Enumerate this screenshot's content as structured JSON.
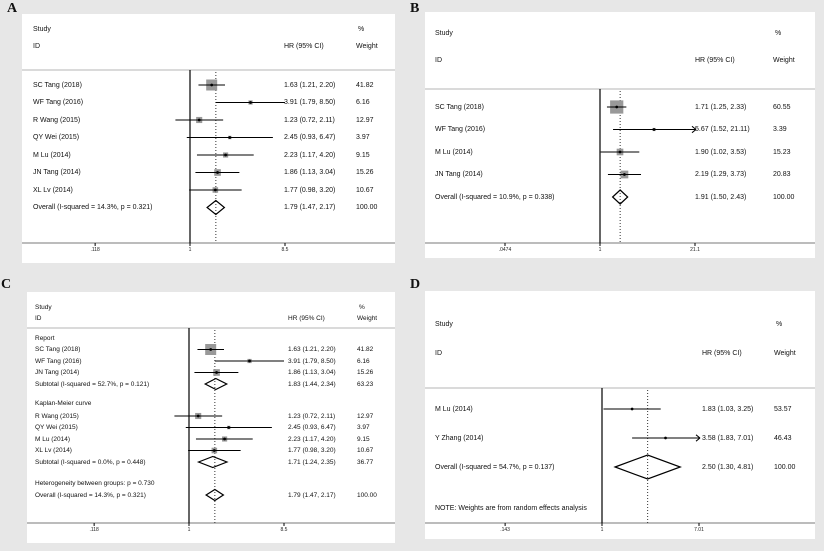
{
  "figure": {
    "panel_letters": [
      "A",
      "B",
      "C",
      "D"
    ],
    "background": "#e7e7e7",
    "colors": {
      "marker_square": "#999999",
      "line": "#000000",
      "separator": "#b5b5b5",
      "axis": "#7a7a7a",
      "text": "#111111"
    }
  },
  "chart_data": [
    {
      "type": "scatter",
      "subtype": "forest-plot",
      "panel": "A",
      "columns": {
        "study": "Study",
        "id": "ID",
        "hr": "HR (95% CI)",
        "pct": "%",
        "weight": "Weight"
      },
      "axis": {
        "scale": "log",
        "ticks": [
          ".118",
          "1",
          "8.5"
        ],
        "tick_values": [
          0.118,
          1,
          8.5
        ],
        "null_value": 1,
        "overall_value": 1.79
      },
      "rows": [
        {
          "kind": "study",
          "label": "SC Tang (2018)",
          "hr": 1.63,
          "lo": 1.21,
          "hi": 2.2,
          "hr_text": "1.63 (1.21, 2.20)",
          "weight": "41.82"
        },
        {
          "kind": "study",
          "label": "WF Tang (2016)",
          "hr": 3.91,
          "lo": 1.79,
          "hi": 8.5,
          "hr_text": "3.91 (1.79, 8.50)",
          "weight": "6.16"
        },
        {
          "kind": "study",
          "label": "R Wang (2015)",
          "hr": 1.23,
          "lo": 0.72,
          "hi": 2.11,
          "hr_text": "1.23 (0.72, 2.11)",
          "weight": "12.97"
        },
        {
          "kind": "study",
          "label": "QY Wei (2015)",
          "hr": 2.45,
          "lo": 0.93,
          "hi": 6.47,
          "hr_text": "2.45 (0.93, 6.47)",
          "weight": "3.97"
        },
        {
          "kind": "study",
          "label": "M Lu (2014)",
          "hr": 2.23,
          "lo": 1.17,
          "hi": 4.2,
          "hr_text": "2.23 (1.17, 4.20)",
          "weight": "9.15"
        },
        {
          "kind": "study",
          "label": "JN Tang (2014)",
          "hr": 1.86,
          "lo": 1.13,
          "hi": 3.04,
          "hr_text": "1.86 (1.13, 3.04)",
          "weight": "15.26"
        },
        {
          "kind": "study",
          "label": "XL Lv (2014)",
          "hr": 1.77,
          "lo": 0.98,
          "hi": 3.2,
          "hr_text": "1.77 (0.98, 3.20)",
          "weight": "10.67"
        },
        {
          "kind": "overall",
          "label": "Overall  (I-squared = 14.3%, p = 0.321)",
          "hr": 1.79,
          "lo": 1.47,
          "hi": 2.17,
          "hr_text": "1.79 (1.47, 2.17)",
          "weight": "100.00"
        }
      ]
    },
    {
      "type": "scatter",
      "subtype": "forest-plot",
      "panel": "B",
      "columns": {
        "study": "Study",
        "id": "ID",
        "hr": "HR (95% CI)",
        "pct": "%",
        "weight": "Weight"
      },
      "axis": {
        "scale": "log",
        "ticks": [
          ".0474",
          "1",
          "21.1"
        ],
        "tick_values": [
          0.0474,
          1,
          21.1
        ],
        "null_value": 1,
        "overall_value": 1.91
      },
      "rows": [
        {
          "kind": "study",
          "label": "SC Tang (2018)",
          "hr": 1.71,
          "lo": 1.25,
          "hi": 2.33,
          "hr_text": "1.71 (1.25, 2.33)",
          "weight": "60.55"
        },
        {
          "kind": "study",
          "label": "WF Tang (2016)",
          "hr": 5.67,
          "lo": 1.52,
          "hi": 21.11,
          "hr_text": "5.67 (1.52, 21.11)",
          "weight": "3.39",
          "arrow": true
        },
        {
          "kind": "study",
          "label": "M Lu (2014)",
          "hr": 1.9,
          "lo": 1.02,
          "hi": 3.53,
          "hr_text": "1.90 (1.02, 3.53)",
          "weight": "15.23"
        },
        {
          "kind": "study",
          "label": "JN Tang (2014)",
          "hr": 2.19,
          "lo": 1.29,
          "hi": 3.73,
          "hr_text": "2.19 (1.29, 3.73)",
          "weight": "20.83"
        },
        {
          "kind": "overall",
          "label": "Overall  (I-squared = 10.9%, p = 0.338)",
          "hr": 1.91,
          "lo": 1.5,
          "hi": 2.43,
          "hr_text": "1.91 (1.50, 2.43)",
          "weight": "100.00"
        }
      ]
    },
    {
      "type": "scatter",
      "subtype": "forest-plot",
      "panel": "C",
      "columns": {
        "study": "Study",
        "id": "ID",
        "hr": "HR (95% CI)",
        "pct": "%",
        "weight": "Weight"
      },
      "axis": {
        "scale": "log",
        "ticks": [
          ".118",
          "1",
          "8.5"
        ],
        "tick_values": [
          0.118,
          1,
          8.5
        ],
        "null_value": 1,
        "overall_value": 1.79
      },
      "rows": [
        {
          "kind": "heading",
          "label": "Report"
        },
        {
          "kind": "study",
          "label": "SC Tang (2018)",
          "hr": 1.63,
          "lo": 1.21,
          "hi": 2.2,
          "hr_text": "1.63 (1.21, 2.20)",
          "weight": "41.82"
        },
        {
          "kind": "study",
          "label": "WF Tang (2016)",
          "hr": 3.91,
          "lo": 1.79,
          "hi": 8.5,
          "hr_text": "3.91 (1.79, 8.50)",
          "weight": "6.16"
        },
        {
          "kind": "study",
          "label": "JN Tang (2014)",
          "hr": 1.86,
          "lo": 1.13,
          "hi": 3.04,
          "hr_text": "1.86 (1.13, 3.04)",
          "weight": "15.26"
        },
        {
          "kind": "subtotal",
          "label": "Subtotal  (I-squared = 52.7%, p = 0.121)",
          "hr": 1.83,
          "lo": 1.44,
          "hi": 2.34,
          "hr_text": "1.83 (1.44, 2.34)",
          "weight": "63.23"
        },
        {
          "kind": "heading",
          "label": "Kaplan-Meier curve"
        },
        {
          "kind": "study",
          "label": "R Wang (2015)",
          "hr": 1.23,
          "lo": 0.72,
          "hi": 2.11,
          "hr_text": "1.23 (0.72, 2.11)",
          "weight": "12.97"
        },
        {
          "kind": "study",
          "label": "QY Wei (2015)",
          "hr": 2.45,
          "lo": 0.93,
          "hi": 6.47,
          "hr_text": "2.45 (0.93, 6.47)",
          "weight": "3.97"
        },
        {
          "kind": "study",
          "label": "M Lu (2014)",
          "hr": 2.23,
          "lo": 1.17,
          "hi": 4.2,
          "hr_text": "2.23 (1.17, 4.20)",
          "weight": "9.15"
        },
        {
          "kind": "study",
          "label": "XL Lv (2014)",
          "hr": 1.77,
          "lo": 0.98,
          "hi": 3.2,
          "hr_text": "1.77 (0.98, 3.20)",
          "weight": "10.67"
        },
        {
          "kind": "subtotal",
          "label": "Subtotal  (I-squared = 0.0%, p = 0.448)",
          "hr": 1.71,
          "lo": 1.24,
          "hi": 2.35,
          "hr_text": "1.71 (1.24, 2.35)",
          "weight": "36.77"
        },
        {
          "kind": "text",
          "label": "Heterogeneity between groups: p = 0.730"
        },
        {
          "kind": "overall",
          "label": "Overall  (I-squared = 14.3%, p = 0.321)",
          "hr": 1.79,
          "lo": 1.47,
          "hi": 2.17,
          "hr_text": "1.79 (1.47, 2.17)",
          "weight": "100.00"
        }
      ]
    },
    {
      "type": "scatter",
      "subtype": "forest-plot",
      "panel": "D",
      "columns": {
        "study": "Study",
        "id": "ID",
        "hr": "HR (95% CI)",
        "pct": "%",
        "weight": "Weight"
      },
      "axis": {
        "scale": "log",
        "ticks": [
          ".143",
          "1",
          "7.01"
        ],
        "tick_values": [
          0.143,
          1,
          7.01
        ],
        "null_value": 1,
        "overall_value": 2.5
      },
      "rows": [
        {
          "kind": "study",
          "label": "M Lu (2014)",
          "hr": 1.83,
          "lo": 1.03,
          "hi": 3.25,
          "hr_text": "1.83 (1.03, 3.25)",
          "weight": "53.57",
          "dot_only": true
        },
        {
          "kind": "study",
          "label": "Y Zhang (2014)",
          "hr": 3.58,
          "lo": 1.83,
          "hi": 7.01,
          "hr_text": "3.58 (1.83, 7.01)",
          "weight": "46.43",
          "arrow": true,
          "dot_only": true
        },
        {
          "kind": "overall",
          "label": "Overall  (I-squared = 54.7%, p = 0.137)",
          "hr": 2.5,
          "lo": 1.3,
          "hi": 4.81,
          "hr_text": "2.50 (1.30, 4.81)",
          "weight": "100.00"
        },
        {
          "kind": "note",
          "label": "NOTE: Weights are from random effects analysis"
        }
      ]
    }
  ]
}
